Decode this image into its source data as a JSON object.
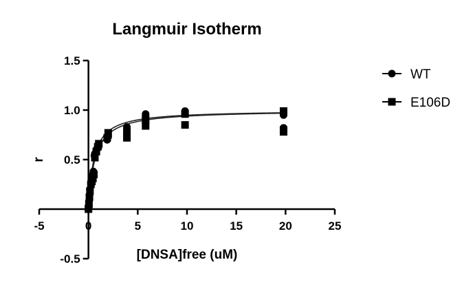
{
  "chart_data": {
    "type": "scatter",
    "title": "Langmuir Isotherm",
    "xlabel": "[DNSA]free (uM)",
    "ylabel": "r",
    "xlim": [
      -5,
      25
    ],
    "ylim": [
      -0.5,
      1.5
    ],
    "x_ticks": [
      "-5",
      "0",
      "5",
      "10",
      "15",
      "20",
      "25"
    ],
    "x_tick_values": [
      -5,
      0,
      5,
      10,
      15,
      20,
      25
    ],
    "y_ticks": [
      "-0.5",
      "0.5",
      "1.0",
      "1.5"
    ],
    "y_tick_values": [
      -0.5,
      0.5,
      1.0,
      1.5
    ],
    "grid": false,
    "legend_position": "right",
    "series": [
      {
        "name": "WT",
        "marker": "circle",
        "color": "#000000",
        "x": [
          0.0,
          0.05,
          0.1,
          0.15,
          0.25,
          0.3,
          0.45,
          0.5,
          0.6,
          0.65,
          0.8,
          0.9,
          1.0,
          1.9,
          2.0,
          3.9,
          5.8,
          5.8,
          9.8,
          9.8,
          19.8,
          19.8,
          19.8
        ],
        "y": [
          0.03,
          0.08,
          0.14,
          0.2,
          0.26,
          0.3,
          0.35,
          0.38,
          0.54,
          0.56,
          0.6,
          0.62,
          0.62,
          0.7,
          0.73,
          0.83,
          0.94,
          0.96,
          0.97,
          0.99,
          0.95,
          0.82,
          0.8
        ],
        "fit_bmax": 1.0,
        "fit_kd": 0.55
      },
      {
        "name": "E106D",
        "marker": "square",
        "color": "#000000",
        "x": [
          0.0,
          0.05,
          0.1,
          0.15,
          0.25,
          0.35,
          0.45,
          0.55,
          0.65,
          0.8,
          0.95,
          1.05,
          1.9,
          2.0,
          3.9,
          3.9,
          5.8,
          5.8,
          9.8,
          9.8,
          19.8,
          19.8,
          19.8
        ],
        "y": [
          0.0,
          0.05,
          0.12,
          0.18,
          0.25,
          0.28,
          0.31,
          0.35,
          0.52,
          0.58,
          0.63,
          0.66,
          0.72,
          0.77,
          0.72,
          0.78,
          0.84,
          0.9,
          0.85,
          0.96,
          0.99,
          0.8,
          0.78
        ],
        "fit_bmax": 1.0,
        "fit_kd": 0.65
      }
    ]
  }
}
